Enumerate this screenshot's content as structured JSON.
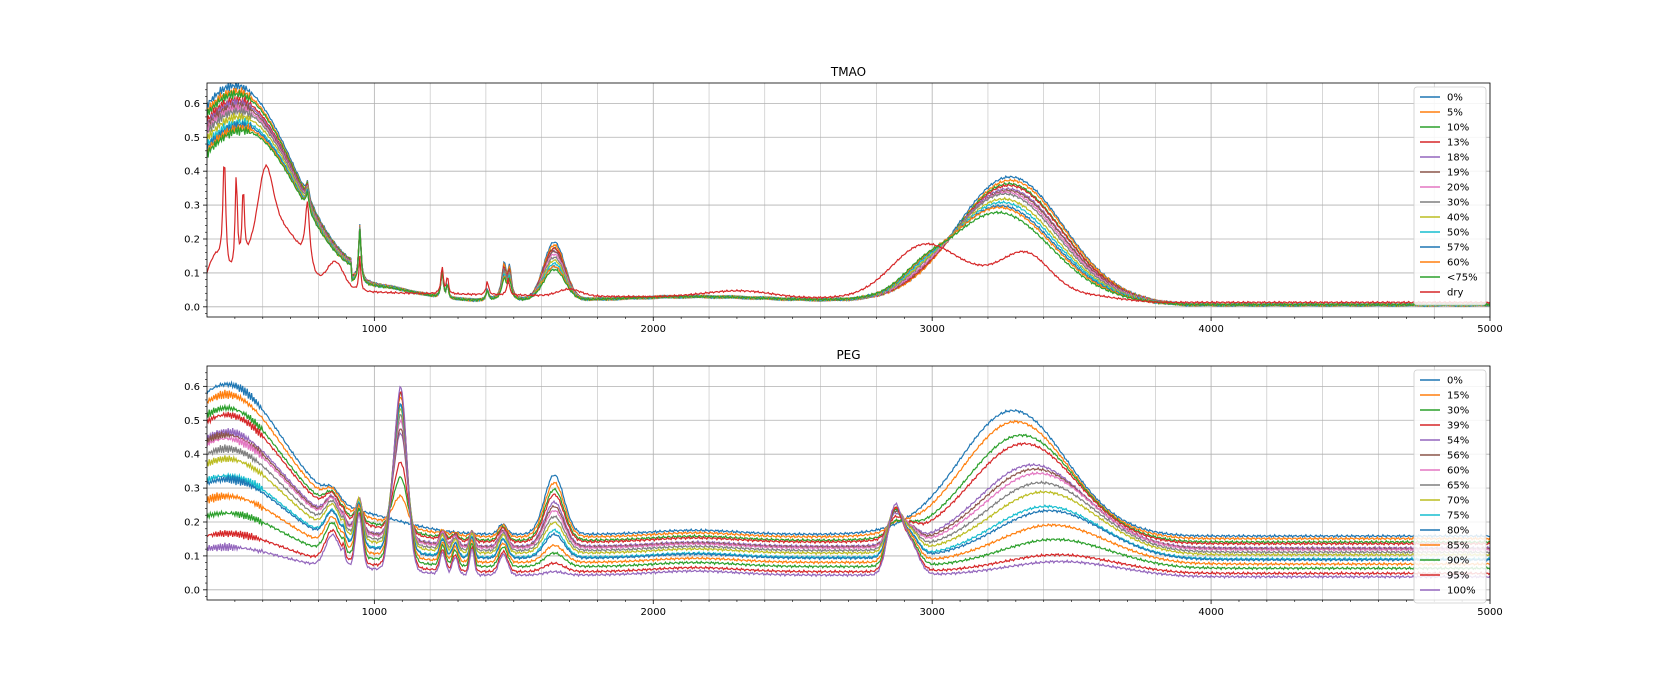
{
  "chart_data": [
    {
      "type": "line",
      "title": "TMAO",
      "xlim": [
        400,
        5000
      ],
      "ylim": [
        -0.03,
        0.66
      ],
      "xticks": [
        1000,
        2000,
        3000,
        4000,
        5000
      ],
      "yticks": [
        0.0,
        0.1,
        0.2,
        0.3,
        0.4,
        0.5,
        0.6
      ],
      "grid": true,
      "legend": "upper right",
      "series": [
        {
          "name": "0%",
          "color": "#1f77b4",
          "params": {
            "lib": 0.58,
            "b3": 0.19,
            "b4": 0.17,
            "oh": 0.365,
            "oh_c": 3280,
            "ch": 0.0
          }
        },
        {
          "name": "5%",
          "color": "#ff7f0e",
          "params": {
            "lib": 0.56,
            "b3": 0.18,
            "b4": 0.16,
            "oh": 0.355,
            "oh_c": 3280,
            "ch": 0.0
          }
        },
        {
          "name": "10%",
          "color": "#2ca02c",
          "params": {
            "lib": 0.55,
            "b3": 0.17,
            "b4": 0.15,
            "oh": 0.345,
            "oh_c": 3275,
            "ch": 0.005
          }
        },
        {
          "name": "13%",
          "color": "#d62728",
          "params": {
            "lib": 0.53,
            "b3": 0.17,
            "b4": 0.15,
            "oh": 0.34,
            "oh_c": 3275,
            "ch": 0.005
          }
        },
        {
          "name": "18%",
          "color": "#9467bd",
          "params": {
            "lib": 0.52,
            "b3": 0.16,
            "b4": 0.14,
            "oh": 0.33,
            "oh_c": 3270,
            "ch": 0.01
          }
        },
        {
          "name": "19%",
          "color": "#8c564b",
          "params": {
            "lib": 0.51,
            "b3": 0.16,
            "b4": 0.14,
            "oh": 0.325,
            "oh_c": 3270,
            "ch": 0.01
          }
        },
        {
          "name": "20%",
          "color": "#e377c2",
          "params": {
            "lib": 0.5,
            "b3": 0.15,
            "b4": 0.13,
            "oh": 0.32,
            "oh_c": 3265,
            "ch": 0.01
          }
        },
        {
          "name": "30%",
          "color": "#7f7f7f",
          "params": {
            "lib": 0.49,
            "b3": 0.14,
            "b4": 0.13,
            "oh": 0.315,
            "oh_c": 3260,
            "ch": 0.015
          }
        },
        {
          "name": "40%",
          "color": "#bcbd22",
          "params": {
            "lib": 0.47,
            "b3": 0.13,
            "b4": 0.12,
            "oh": 0.3,
            "oh_c": 3255,
            "ch": 0.02
          }
        },
        {
          "name": "50%",
          "color": "#17becf",
          "params": {
            "lib": 0.45,
            "b3": 0.12,
            "b4": 0.12,
            "oh": 0.29,
            "oh_c": 3250,
            "ch": 0.025
          }
        },
        {
          "name": "57%",
          "color": "#1f77b4",
          "params": {
            "lib": 0.44,
            "b3": 0.11,
            "b4": 0.11,
            "oh": 0.28,
            "oh_c": 3245,
            "ch": 0.03
          }
        },
        {
          "name": "60%",
          "color": "#ff7f0e",
          "params": {
            "lib": 0.43,
            "b3": 0.11,
            "b4": 0.11,
            "oh": 0.275,
            "oh_c": 3240,
            "ch": 0.03
          }
        },
        {
          "name": "<75%",
          "color": "#2ca02c",
          "params": {
            "lib": 0.42,
            "b3": 0.1,
            "b4": 0.1,
            "oh": 0.26,
            "oh_c": 3235,
            "ch": 0.035
          }
        },
        {
          "name": "dry",
          "color": "#d62728",
          "params": {
            "dry": true
          }
        }
      ]
    },
    {
      "type": "line",
      "title": "PEG",
      "xlim": [
        400,
        5000
      ],
      "ylim": [
        -0.03,
        0.66
      ],
      "xticks": [
        1000,
        2000,
        3000,
        4000,
        5000
      ],
      "yticks": [
        0.0,
        0.1,
        0.2,
        0.3,
        0.4,
        0.5,
        0.6
      ],
      "grid": true,
      "legend": "upper right",
      "series": [
        {
          "name": "0%",
          "color": "#1f77b4",
          "params": {
            "lib": 0.59,
            "co": 0.0,
            "ch": 0.0,
            "oh": 0.365,
            "oh_c": 3290,
            "b": 0.175
          }
        },
        {
          "name": "15%",
          "color": "#ff7f0e",
          "params": {
            "lib": 0.56,
            "co": 0.1,
            "ch": 0.02,
            "oh": 0.34,
            "oh_c": 3300,
            "b": 0.16
          }
        },
        {
          "name": "30%",
          "color": "#2ca02c",
          "params": {
            "lib": 0.52,
            "co": 0.18,
            "ch": 0.04,
            "oh": 0.31,
            "oh_c": 3320,
            "b": 0.15
          }
        },
        {
          "name": "39%",
          "color": "#d62728",
          "params": {
            "lib": 0.5,
            "co": 0.24,
            "ch": 0.06,
            "oh": 0.29,
            "oh_c": 3330,
            "b": 0.14
          }
        },
        {
          "name": "54%",
          "color": "#9467bd",
          "params": {
            "lib": 0.45,
            "co": 0.36,
            "ch": 0.09,
            "oh": 0.24,
            "oh_c": 3360,
            "b": 0.13
          }
        },
        {
          "name": "56%",
          "color": "#8c564b",
          "params": {
            "lib": 0.44,
            "co": 0.38,
            "ch": 0.1,
            "oh": 0.23,
            "oh_c": 3370,
            "b": 0.12
          }
        },
        {
          "name": "60%",
          "color": "#e377c2",
          "params": {
            "lib": 0.43,
            "co": 0.41,
            "ch": 0.11,
            "oh": 0.22,
            "oh_c": 3380,
            "b": 0.11
          }
        },
        {
          "name": "65%",
          "color": "#7f7f7f",
          "params": {
            "lib": 0.4,
            "co": 0.44,
            "ch": 0.12,
            "oh": 0.2,
            "oh_c": 3390,
            "b": 0.1
          }
        },
        {
          "name": "70%",
          "color": "#bcbd22",
          "params": {
            "lib": 0.37,
            "co": 0.47,
            "ch": 0.13,
            "oh": 0.18,
            "oh_c": 3400,
            "b": 0.09
          }
        },
        {
          "name": "75%",
          "color": "#17becf",
          "params": {
            "lib": 0.32,
            "co": 0.5,
            "ch": 0.14,
            "oh": 0.15,
            "oh_c": 3410,
            "b": 0.08
          }
        },
        {
          "name": "80%",
          "color": "#1f77b4",
          "params": {
            "lib": 0.31,
            "co": 0.51,
            "ch": 0.145,
            "oh": 0.14,
            "oh_c": 3420,
            "b": 0.07
          }
        },
        {
          "name": "85%",
          "color": "#ff7f0e",
          "params": {
            "lib": 0.26,
            "co": 0.55,
            "ch": 0.16,
            "oh": 0.11,
            "oh_c": 3430,
            "b": 0.05
          }
        },
        {
          "name": "90%",
          "color": "#2ca02c",
          "params": {
            "lib": 0.21,
            "co": 0.58,
            "ch": 0.17,
            "oh": 0.08,
            "oh_c": 3440,
            "b": 0.04
          }
        },
        {
          "name": "95%",
          "color": "#d62728",
          "params": {
            "lib": 0.15,
            "co": 0.6,
            "ch": 0.19,
            "oh": 0.05,
            "oh_c": 3450,
            "b": 0.025
          }
        },
        {
          "name": "100%",
          "color": "#9467bd",
          "params": {
            "lib": 0.11,
            "co": 0.63,
            "ch": 0.21,
            "oh": 0.04,
            "oh_c": 3460,
            "b": 0.01
          }
        }
      ]
    }
  ]
}
